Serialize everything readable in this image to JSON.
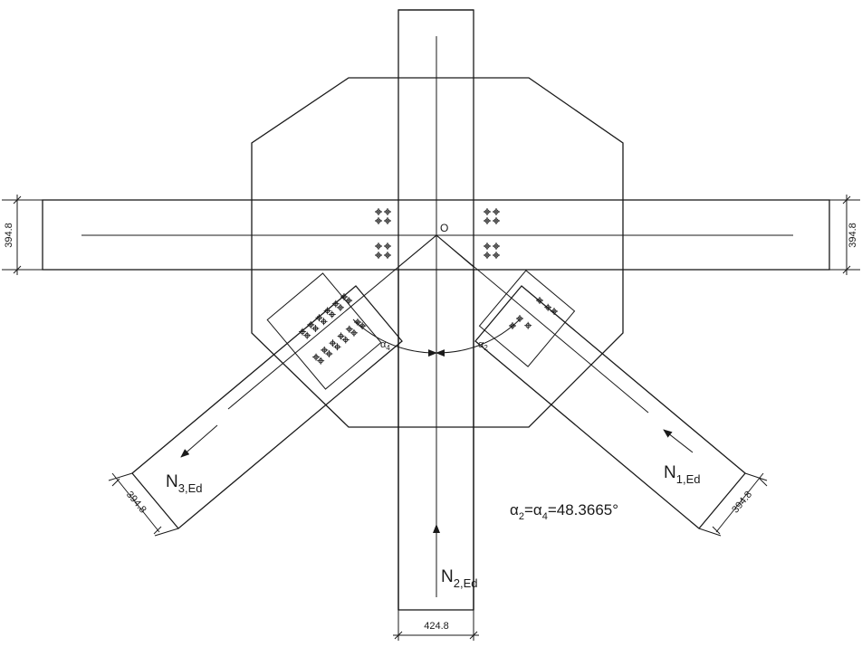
{
  "origin_label": "O",
  "dimensions": {
    "chord_width_left": "394.8",
    "chord_width_right": "394.8",
    "brace_3_width": "394.8",
    "brace_1_width": "394.8",
    "vertical_width": "424.8"
  },
  "forces": {
    "n1": {
      "main": "N",
      "sub": "1,Ed"
    },
    "n2": {
      "main": "N",
      "sub": "2,Ed"
    },
    "n3": {
      "main": "N",
      "sub": "3,Ed"
    }
  },
  "angles": {
    "alpha4": {
      "main": "α",
      "sub": "4"
    },
    "alpha2": {
      "main": "α",
      "sub": "2"
    }
  },
  "angle_note": {
    "a": "α",
    "sub2": "2",
    "eq1": "=α",
    "sub4": "4",
    "value": "=48.3665°"
  }
}
